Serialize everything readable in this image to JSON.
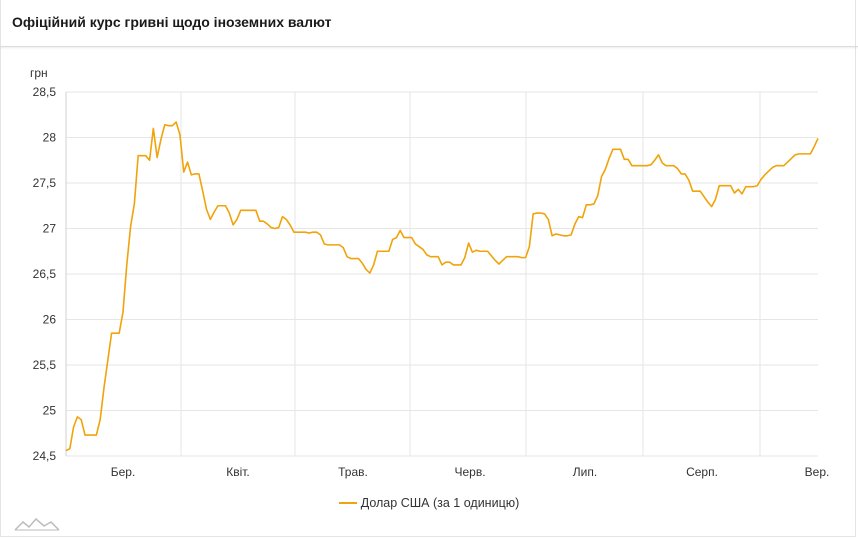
{
  "header": {
    "title": "Офіційний курс гривні щодо іноземних валют"
  },
  "colors": {
    "series": "#f0a30a",
    "grid": "#e6e6e6",
    "text": "#333333",
    "brand": "#bbbbbb"
  },
  "icons": {
    "brand": "chart-watermark-icon"
  },
  "chart_data": {
    "type": "line",
    "ylabel": "грн",
    "ylim": [
      24.5,
      28.5
    ],
    "yticks": [
      24.5,
      25,
      25.5,
      26,
      26.5,
      27,
      27.5,
      28,
      28.5
    ],
    "ytick_labels": [
      "24,5",
      "25",
      "25,5",
      "26",
      "26,5",
      "27",
      "27,5",
      "28",
      "28,5"
    ],
    "x_ticks": [
      "Бер.",
      "Квіт.",
      "Трав.",
      "Черв.",
      "Лип.",
      "Серп.",
      "Вер."
    ],
    "grid": true,
    "legend_position": "bottom",
    "series": [
      {
        "name": "Долар США (за 1 одиницю)",
        "values": [
          24.56,
          24.58,
          24.82,
          24.93,
          24.9,
          24.73,
          24.73,
          24.73,
          24.73,
          24.9,
          25.25,
          25.55,
          25.85,
          25.85,
          25.85,
          26.08,
          26.6,
          27.02,
          27.27,
          27.8,
          27.8,
          27.8,
          27.75,
          28.1,
          27.78,
          27.98,
          28.14,
          28.13,
          28.13,
          28.17,
          28.03,
          27.62,
          27.73,
          27.59,
          27.6,
          27.6,
          27.41,
          27.21,
          27.1,
          27.18,
          27.25,
          27.25,
          27.25,
          27.17,
          27.04,
          27.1,
          27.2,
          27.2,
          27.2,
          27.2,
          27.2,
          27.08,
          27.08,
          27.05,
          27.01,
          27.0,
          27.01,
          27.13,
          27.1,
          27.04,
          26.96,
          26.96,
          26.96,
          26.96,
          26.95,
          26.96,
          26.96,
          26.93,
          26.83,
          26.82,
          26.82,
          26.82,
          26.82,
          26.79,
          26.69,
          26.67,
          26.67,
          26.67,
          26.62,
          26.55,
          26.51,
          26.6,
          26.75,
          26.75,
          26.75,
          26.75,
          26.88,
          26.9,
          26.98,
          26.9,
          26.9,
          26.9,
          26.83,
          26.8,
          26.77,
          26.71,
          26.69,
          26.69,
          26.69,
          26.6,
          26.63,
          26.63,
          26.6,
          26.6,
          26.6,
          26.68,
          26.84,
          26.74,
          26.76,
          26.75,
          26.75,
          26.75,
          26.7,
          26.65,
          26.61,
          26.65,
          26.69,
          26.69,
          26.69,
          26.69,
          26.68,
          26.68,
          26.8,
          27.16,
          27.17,
          27.17,
          27.16,
          27.1,
          26.92,
          26.94,
          26.93,
          26.92,
          26.92,
          26.93,
          27.05,
          27.13,
          27.12,
          27.26,
          27.26,
          27.27,
          27.36,
          27.57,
          27.65,
          27.77,
          27.87,
          27.87,
          27.87,
          27.76,
          27.76,
          27.69,
          27.69,
          27.69,
          27.69,
          27.69,
          27.7,
          27.75,
          27.81,
          27.72,
          27.69,
          27.69,
          27.69,
          27.66,
          27.6,
          27.6,
          27.53,
          27.41,
          27.41,
          27.41,
          27.35,
          27.29,
          27.24,
          27.32,
          27.47,
          27.47,
          27.47,
          27.47,
          27.39,
          27.43,
          27.38,
          27.46,
          27.46,
          27.46,
          27.47,
          27.54,
          27.59,
          27.63,
          27.67,
          27.69,
          27.69,
          27.69,
          27.73,
          27.77,
          27.81,
          27.82,
          27.82,
          27.82,
          27.82,
          27.9,
          27.99
        ]
      }
    ]
  }
}
